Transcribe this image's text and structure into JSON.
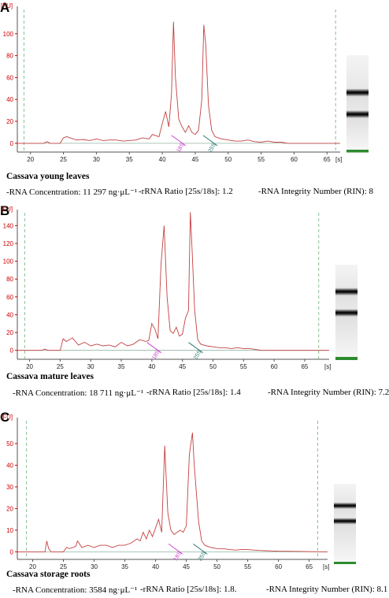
{
  "panels": [
    {
      "letter": "A",
      "sample": "Cassava young leaves",
      "stats": {
        "concentration": "-RNA Concentration: 11 297 ng·μL⁻¹",
        "ratio": "-rRNA Ratio [25s/18s]: 1.2",
        "rin": "-RNA Integrity Number (RIN): 8"
      }
    },
    {
      "letter": "B",
      "sample": "Cassava mature leaves",
      "stats": {
        "concentration": "-RNA Concentration: 18 711 ng·μL⁻¹",
        "ratio": "-rRNA Ratio [25s/18s]: 1.4",
        "rin": "-RNA Integrity Number (RIN): 7.2"
      }
    },
    {
      "letter": "C",
      "sample": "Cassava storage roots",
      "stats": {
        "concentration": "-RNA Concentration: 3584 ng·μL⁻¹",
        "ratio": "-rRNA Ratio [25s/18s]: 1.8.",
        "rin": "-RNA Integrity Number (RIN): 8.1"
      }
    }
  ],
  "chart_data": [
    {
      "type": "line",
      "ylabel": "[FU]",
      "xlabel": "[s]",
      "xlim": [
        18,
        67
      ],
      "ylim": [
        -8,
        125
      ],
      "xticks": [
        20,
        25,
        30,
        35,
        40,
        45,
        50,
        55,
        60,
        65
      ],
      "yticks": [
        0,
        20,
        40,
        60,
        80,
        100
      ],
      "marker_lines": [
        19,
        66.3
      ],
      "peak_labels": [
        {
          "text": "18S",
          "x": 42.6,
          "color": "#cc44cc"
        },
        {
          "text": "25S",
          "x": 47.4,
          "color": "#2a7a70"
        }
      ],
      "x": [
        18,
        22,
        22.5,
        23,
        24.5,
        25,
        25.5,
        26,
        27,
        28,
        29,
        30,
        31,
        32,
        33,
        34,
        35,
        36,
        37,
        38,
        38.5,
        39,
        39.5,
        40,
        40.5,
        41,
        41.4,
        41.7,
        42,
        42.5,
        43,
        43.5,
        44,
        44.5,
        45,
        45.5,
        46,
        46.3,
        46.6,
        47,
        47.5,
        48,
        49,
        50,
        51,
        52,
        53,
        54,
        55,
        56,
        57,
        58,
        58.5,
        59,
        60,
        67
      ],
      "y": [
        0,
        0,
        1.5,
        0,
        0,
        5,
        6,
        5,
        3,
        3.5,
        2.5,
        4,
        2.5,
        3,
        3,
        2,
        2.5,
        3,
        5,
        4,
        8,
        7,
        6,
        18,
        29,
        15,
        45,
        111,
        60,
        22,
        15,
        10,
        16,
        10,
        8,
        12,
        40,
        108,
        90,
        35,
        12,
        6,
        4,
        3,
        2,
        2,
        3,
        1.5,
        1,
        2,
        1,
        1,
        0.6,
        0,
        0,
        0
      ],
      "gel_bands": [
        0.38,
        0.6
      ]
    },
    {
      "type": "line",
      "ylabel": "[FU]",
      "xlabel": "[s]",
      "xlim": [
        18,
        69
      ],
      "ylim": [
        -10,
        158
      ],
      "xticks": [
        20,
        25,
        30,
        35,
        40,
        45,
        50,
        55,
        60,
        65
      ],
      "yticks": [
        0,
        20,
        40,
        60,
        80,
        100,
        120,
        140
      ],
      "marker_lines": [
        19.2,
        67.3
      ],
      "peak_labels": [
        {
          "text": "18S",
          "x": 40.5,
          "color": "#cc44cc"
        },
        {
          "text": "25S",
          "x": 47.3,
          "color": "#2a7a70"
        }
      ],
      "x": [
        18,
        22,
        22.5,
        23,
        25,
        25.5,
        26,
        27,
        28,
        29,
        30,
        31,
        32,
        33,
        34,
        35,
        36,
        37,
        38,
        39,
        39.5,
        40,
        40.5,
        41,
        41.5,
        42,
        42.5,
        43,
        43.5,
        44,
        44.5,
        45,
        45.5,
        46,
        46.3,
        46.6,
        47,
        47.5,
        48,
        49,
        50,
        51,
        52,
        53,
        54,
        55,
        56,
        57,
        58,
        69
      ],
      "y": [
        0,
        0,
        1.5,
        0,
        0,
        13,
        10,
        14,
        6,
        9,
        5,
        7,
        5,
        6,
        4,
        9,
        5,
        7,
        12,
        10,
        11,
        30,
        24,
        13,
        97,
        140,
        60,
        22,
        19,
        26,
        16,
        18,
        36,
        45,
        155,
        110,
        45,
        12,
        7,
        5,
        4,
        3,
        3,
        2,
        3,
        2,
        2,
        1,
        0,
        0
      ],
      "gel_bands": [
        0.28,
        0.5
      ]
    },
    {
      "type": "line",
      "ylabel": "[FU]",
      "xlabel": "[s]",
      "xlim": [
        17.5,
        68
      ],
      "ylim": [
        -3.5,
        62
      ],
      "xticks": [
        20,
        25,
        30,
        35,
        40,
        45,
        50,
        55,
        60,
        65
      ],
      "yticks": [
        0,
        10,
        20,
        30,
        40,
        50
      ],
      "marker_lines": [
        19,
        66.4
      ],
      "peak_labels": [
        {
          "text": "18S",
          "x": 43.4,
          "color": "#cc44cc"
        },
        {
          "text": "25S",
          "x": 47.4,
          "color": "#2a7a70"
        }
      ],
      "x": [
        17.5,
        22,
        22.3,
        22.6,
        23,
        25,
        25.5,
        26,
        27,
        27.3,
        28,
        29,
        30,
        31,
        32,
        33,
        34,
        35,
        36,
        37,
        37.5,
        38,
        38.5,
        39,
        39.5,
        40,
        40.5,
        41,
        41.5,
        42,
        42.5,
        43,
        43.5,
        44,
        44.5,
        45,
        45.5,
        46,
        46.3,
        47,
        47.5,
        48,
        49,
        50,
        51,
        52,
        53,
        54,
        55,
        56,
        57,
        58,
        59,
        60,
        68
      ],
      "y": [
        0,
        0,
        5,
        1.5,
        0,
        0,
        2,
        1.5,
        2.5,
        5,
        2,
        3,
        2,
        3,
        3,
        2,
        3,
        3,
        4,
        6,
        5,
        9,
        6,
        10,
        7,
        11,
        15,
        9,
        49,
        18,
        10,
        8,
        9,
        10,
        9,
        12,
        45,
        55,
        40,
        14,
        5,
        3,
        2,
        1.5,
        1.5,
        1,
        0.8,
        1,
        1,
        0.8,
        0.6,
        0.5,
        0.4,
        0.3,
        0
      ],
      "gel_bands": [
        0.27,
        0.46
      ]
    }
  ]
}
